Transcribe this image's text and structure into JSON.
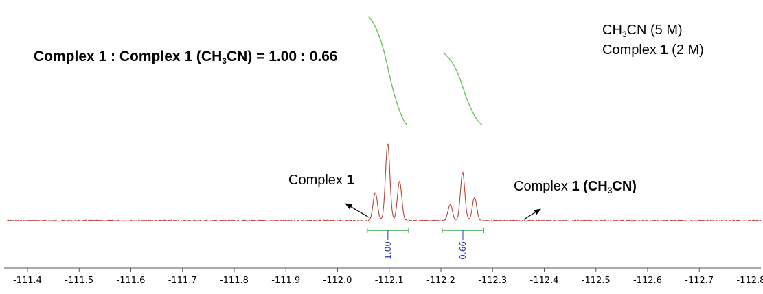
{
  "chart_data": {
    "type": "line",
    "title": "Complex 1 : Complex 1 (CH3CN) = 1.00 : 0.66",
    "xlabel": "",
    "ylabel": "",
    "x_reversed": true,
    "xlim": [
      -111.35,
      -112.83
    ],
    "ticks": [
      -111.4,
      -111.5,
      -111.6,
      -111.7,
      -111.8,
      -111.9,
      -112.0,
      -112.1,
      -112.2,
      -112.3,
      -112.4,
      -112.5,
      -112.6,
      -112.7,
      -112.8
    ],
    "tick_labels": [
      "-111.4",
      "-111.5",
      "-111.6",
      "-111.7",
      "-111.8",
      "-111.9",
      "-112.0",
      "-112.1",
      "-112.2",
      "-112.3",
      "-112.4",
      "-112.5",
      "-112.6",
      "-112.7",
      "-112.8"
    ],
    "colors": {
      "spectrum": "#b5443c",
      "integral": "#6ec25a",
      "integral_bar": "#3ca84a",
      "integral_value": "#2a3ab0",
      "axis": "#555555"
    },
    "peaks": [
      {
        "group": "Complex 1",
        "shift": -112.073,
        "height": 0.36
      },
      {
        "group": "Complex 1",
        "shift": -112.097,
        "height": 1.0
      },
      {
        "group": "Complex 1",
        "shift": -112.12,
        "height": 0.51
      },
      {
        "group": "Complex 1 (CH3CN)",
        "shift": -112.218,
        "height": 0.21
      },
      {
        "group": "Complex 1 (CH3CN)",
        "shift": -112.242,
        "height": 0.62
      },
      {
        "group": "Complex 1 (CH3CN)",
        "shift": -112.265,
        "height": 0.3
      }
    ],
    "integrals": [
      {
        "from": -112.06,
        "to": -112.135,
        "value": 1.0,
        "label": "1.00"
      },
      {
        "from": -112.205,
        "to": -112.28,
        "value": 0.66,
        "label": "0.66"
      }
    ]
  },
  "annotations": {
    "ratio_a": "Complex 1 : Complex ",
    "ratio_b": "1",
    "ratio_c": " (CH",
    "ratio_d": "3",
    "ratio_e": "CN) = 1.00 : 0.66",
    "cond1_a": "CH",
    "cond1_b": "3",
    "cond1_c": "CN (5 M)",
    "cond2_a": "Complex ",
    "cond2_b": "1",
    "cond2_c": " (2 M)",
    "peakA_a": "Complex ",
    "peakA_b": "1",
    "peakB_a": "Complex ",
    "peakB_b": "1 (CH",
    "peakB_c": "3",
    "peakB_d": "CN)"
  }
}
